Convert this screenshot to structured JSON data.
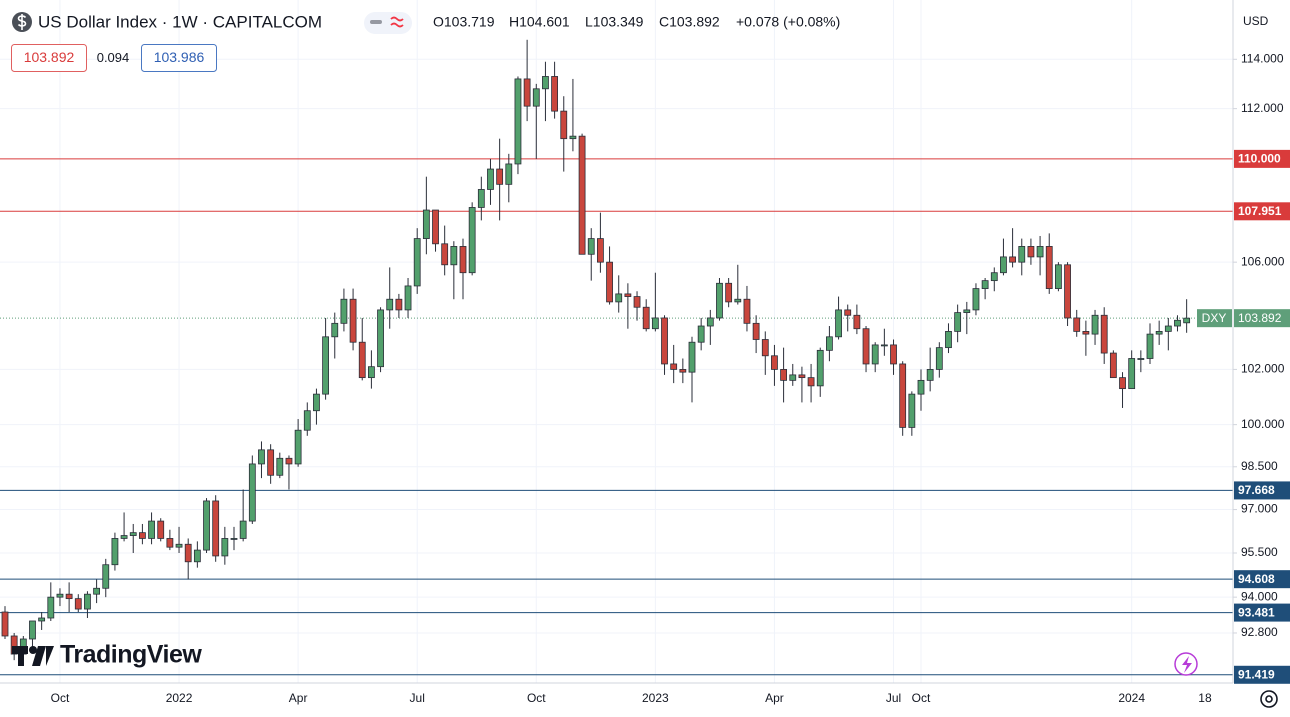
{
  "header": {
    "symbol": "US Dollar Index · 1W · CAPITALCOM",
    "open": "O103.719",
    "high": "H104.601",
    "low": "L103.349",
    "close": "C103.892",
    "change": "+0.078 (+0.08%)"
  },
  "trade": {
    "sell": "103.892",
    "spread": "0.094",
    "buy": "103.986"
  },
  "currency": "USD",
  "logo": "TradingView",
  "chart_data": {
    "type": "candlestick",
    "log_scale": true,
    "grid": true,
    "up_color": "#52a06c",
    "down_color": "#c9463d",
    "categories": [
      null,
      null,
      null,
      null,
      null,
      null,
      "Oct",
      null,
      null,
      null,
      null,
      null,
      null,
      null,
      null,
      null,
      null,
      null,
      null,
      "2022",
      null,
      null,
      null,
      null,
      null,
      null,
      null,
      null,
      null,
      null,
      null,
      null,
      "Apr",
      null,
      null,
      null,
      null,
      null,
      null,
      null,
      null,
      null,
      null,
      null,
      null,
      "Jul",
      null,
      null,
      null,
      null,
      null,
      null,
      null,
      null,
      null,
      null,
      null,
      null,
      "Oct",
      null,
      null,
      null,
      null,
      null,
      null,
      null,
      null,
      null,
      null,
      null,
      null,
      "2023",
      null,
      null,
      null,
      null,
      null,
      null,
      null,
      null,
      null,
      null,
      null,
      null,
      "Apr",
      null,
      null,
      null,
      null,
      null,
      null,
      null,
      null,
      null,
      null,
      null,
      null,
      "Jul",
      null,
      null,
      "Oct",
      null,
      null,
      null,
      null,
      null,
      null,
      null,
      null,
      null,
      null,
      null,
      null,
      null,
      null,
      null,
      null,
      null,
      null,
      null,
      null,
      null,
      null,
      "2024",
      null,
      null,
      null,
      null,
      null,
      null
    ],
    "x_end_label": "18",
    "open": [
      93.5,
      92.7,
      92.1,
      92.6,
      93.2,
      93.3,
      94.0,
      94.1,
      93.95,
      93.6,
      94.1,
      94.3,
      95.1,
      96.0,
      96.1,
      96.2,
      96.0,
      96.6,
      96.0,
      95.7,
      95.8,
      95.2,
      95.6,
      97.3,
      95.4,
      96.0,
      96.0,
      96.6,
      98.6,
      99.1,
      98.2,
      98.8,
      98.6,
      99.8,
      100.5,
      101.1,
      103.2,
      103.7,
      104.6,
      103.0,
      101.7,
      102.1,
      104.2,
      104.6,
      104.2,
      105.1,
      106.9,
      108.0,
      106.7,
      105.9,
      106.6,
      105.6,
      108.1,
      108.8,
      109.6,
      109.0,
      109.8,
      113.2,
      112.1,
      112.8,
      113.3,
      111.9,
      110.8,
      110.9,
      106.3,
      106.9,
      106.0,
      104.5,
      104.8,
      104.7,
      104.3,
      103.5,
      103.9,
      102.2,
      102.0,
      101.9,
      103.0,
      103.6,
      103.9,
      105.2,
      104.5,
      104.6,
      103.7,
      103.1,
      102.5,
      102.0,
      101.6,
      101.8,
      101.7,
      101.4,
      102.7,
      103.2,
      104.2,
      104.0,
      103.5,
      102.2,
      102.9,
      102.9,
      102.2,
      99.9,
      101.1,
      101.6,
      102.0,
      102.8,
      103.4,
      104.1,
      104.2,
      105.0,
      105.3,
      105.6,
      106.2,
      106.0,
      106.6,
      106.2,
      106.6,
      105.0,
      105.9,
      103.9,
      103.4,
      103.3,
      104.0,
      102.6,
      101.7,
      101.3,
      102.4,
      102.4,
      103.3,
      103.4,
      103.6,
      103.719
    ],
    "high": [
      93.7,
      92.8,
      92.7,
      93.2,
      93.5,
      94.5,
      94.3,
      94.5,
      94.1,
      94.2,
      94.6,
      95.3,
      96.2,
      96.9,
      96.5,
      96.5,
      96.9,
      96.7,
      96.3,
      96.4,
      96.0,
      95.9,
      97.4,
      97.5,
      96.4,
      96.4,
      97.7,
      98.9,
      99.4,
      99.3,
      99.0,
      98.9,
      100.2,
      100.8,
      101.3,
      103.9,
      104.1,
      105.0,
      105.0,
      103.9,
      102.7,
      104.3,
      105.8,
      104.8,
      105.4,
      107.3,
      109.3,
      108.0,
      107.4,
      106.8,
      106.9,
      108.3,
      109.3,
      110.0,
      110.8,
      110.2,
      113.3,
      114.8,
      113.0,
      113.9,
      113.9,
      112.5,
      113.2,
      111.0,
      107.3,
      107.9,
      106.6,
      105.5,
      105.2,
      104.9,
      104.6,
      105.6,
      104.0,
      102.9,
      102.4,
      103.2,
      103.9,
      104.2,
      105.4,
      105.4,
      105.9,
      105.1,
      104.0,
      103.4,
      102.9,
      102.8,
      102.2,
      102.1,
      102.2,
      102.8,
      103.6,
      104.7,
      104.4,
      104.4,
      103.6,
      103.0,
      103.5,
      103.1,
      102.3,
      101.2,
      102.0,
      102.8,
      103.0,
      103.7,
      104.4,
      104.5,
      105.2,
      105.4,
      105.8,
      106.9,
      107.3,
      106.9,
      106.9,
      107.0,
      107.1,
      106.0,
      106.0,
      104.2,
      103.8,
      104.2,
      104.3,
      102.7,
      101.9,
      102.7,
      102.7,
      103.7,
      103.8,
      103.9,
      104.0,
      104.601
    ],
    "low": [
      92.6,
      91.9,
      92.0,
      92.3,
      92.9,
      93.2,
      93.7,
      93.5,
      93.5,
      93.3,
      93.8,
      94.0,
      94.9,
      95.9,
      95.5,
      95.8,
      95.8,
      95.9,
      95.6,
      95.5,
      94.6,
      95.0,
      95.5,
      95.2,
      95.1,
      95.6,
      95.9,
      96.5,
      98.1,
      97.9,
      98.1,
      97.7,
      98.5,
      99.6,
      100.0,
      100.9,
      102.4,
      103.4,
      102.7,
      101.6,
      101.3,
      101.9,
      103.5,
      103.9,
      103.9,
      104.8,
      106.3,
      106.4,
      105.5,
      104.6,
      104.6,
      105.5,
      107.6,
      108.2,
      107.6,
      108.3,
      109.4,
      111.5,
      110.0,
      111.5,
      111.6,
      109.5,
      110.3,
      106.3,
      105.3,
      105.6,
      104.4,
      104.1,
      103.5,
      103.8,
      103.4,
      103.4,
      101.8,
      101.5,
      101.5,
      100.8,
      102.7,
      102.9,
      103.8,
      104.3,
      104.4,
      103.4,
      102.6,
      101.8,
      101.4,
      100.8,
      101.4,
      100.8,
      100.8,
      101.0,
      102.3,
      103.1,
      103.4,
      103.3,
      101.9,
      101.9,
      102.5,
      101.8,
      99.6,
      99.6,
      100.5,
      101.2,
      101.7,
      102.6,
      103.0,
      103.3,
      104.0,
      104.6,
      104.9,
      105.5,
      105.8,
      105.5,
      105.9,
      105.5,
      104.8,
      104.9,
      103.6,
      103.2,
      102.5,
      102.9,
      102.2,
      101.7,
      100.6,
      101.3,
      101.9,
      102.2,
      102.9,
      102.7,
      103.4,
      103.349
    ],
    "close": [
      92.7,
      92.1,
      92.6,
      93.2,
      93.3,
      94.0,
      94.1,
      93.95,
      93.6,
      94.1,
      94.3,
      95.1,
      96.0,
      96.1,
      96.2,
      96.0,
      96.6,
      96.0,
      95.7,
      95.8,
      95.2,
      95.6,
      97.3,
      95.4,
      96.0,
      96.0,
      96.6,
      98.6,
      99.1,
      98.2,
      98.8,
      98.6,
      99.8,
      100.5,
      101.1,
      103.2,
      103.7,
      104.6,
      103.0,
      101.7,
      102.1,
      104.2,
      104.6,
      104.2,
      105.1,
      106.9,
      108.0,
      106.7,
      105.9,
      106.6,
      105.6,
      108.1,
      108.8,
      109.6,
      109.0,
      109.8,
      113.2,
      112.1,
      112.8,
      113.3,
      111.9,
      110.8,
      110.9,
      106.3,
      106.9,
      106.0,
      104.5,
      104.8,
      104.7,
      104.3,
      103.5,
      103.9,
      102.2,
      102.0,
      101.9,
      103.0,
      103.6,
      103.9,
      105.2,
      104.5,
      104.6,
      103.7,
      103.1,
      102.5,
      102.0,
      101.6,
      101.8,
      101.7,
      101.4,
      102.7,
      103.2,
      104.2,
      104.0,
      103.5,
      102.2,
      102.9,
      102.9,
      102.2,
      99.9,
      101.1,
      101.6,
      102.0,
      102.8,
      103.4,
      104.1,
      104.2,
      105.0,
      105.3,
      105.6,
      106.2,
      106.0,
      106.6,
      106.2,
      106.6,
      105.0,
      105.9,
      103.9,
      103.4,
      103.3,
      104.0,
      102.6,
      101.7,
      101.3,
      102.4,
      102.4,
      103.3,
      103.4,
      103.6,
      103.814,
      103.892
    ],
    "ylim": [
      91.15,
      116.45
    ],
    "yticks": [
      {
        "value": 114,
        "label": "114.000"
      },
      {
        "value": 112,
        "label": "112.000"
      },
      {
        "value": 106,
        "label": "106.000"
      },
      {
        "value": 102,
        "label": "102.000"
      },
      {
        "value": 100,
        "label": "100.000"
      },
      {
        "value": 98.5,
        "label": "98.500"
      },
      {
        "value": 97,
        "label": "97.000"
      },
      {
        "value": 95.5,
        "label": "95.500"
      },
      {
        "value": 94,
        "label": "94.000"
      },
      {
        "value": 92.8,
        "label": "92.800"
      }
    ],
    "levels": [
      {
        "value": 110,
        "label": "110.000",
        "color": "#d93b3b"
      },
      {
        "value": 107.951,
        "label": "107.951",
        "color": "#d93b3b"
      },
      {
        "value": 97.668,
        "label": "97.668",
        "color": "#1f4e79"
      },
      {
        "value": 94.608,
        "label": "94.608",
        "color": "#1f4e79"
      },
      {
        "value": 93.481,
        "label": "93.481",
        "color": "#1f4e79"
      },
      {
        "value": 91.419,
        "label": "91.419",
        "color": "#1f4e79"
      }
    ],
    "last_price": {
      "name": "DXY",
      "value": 103.892,
      "label": "103.892",
      "color": "#5f9f7a"
    }
  }
}
